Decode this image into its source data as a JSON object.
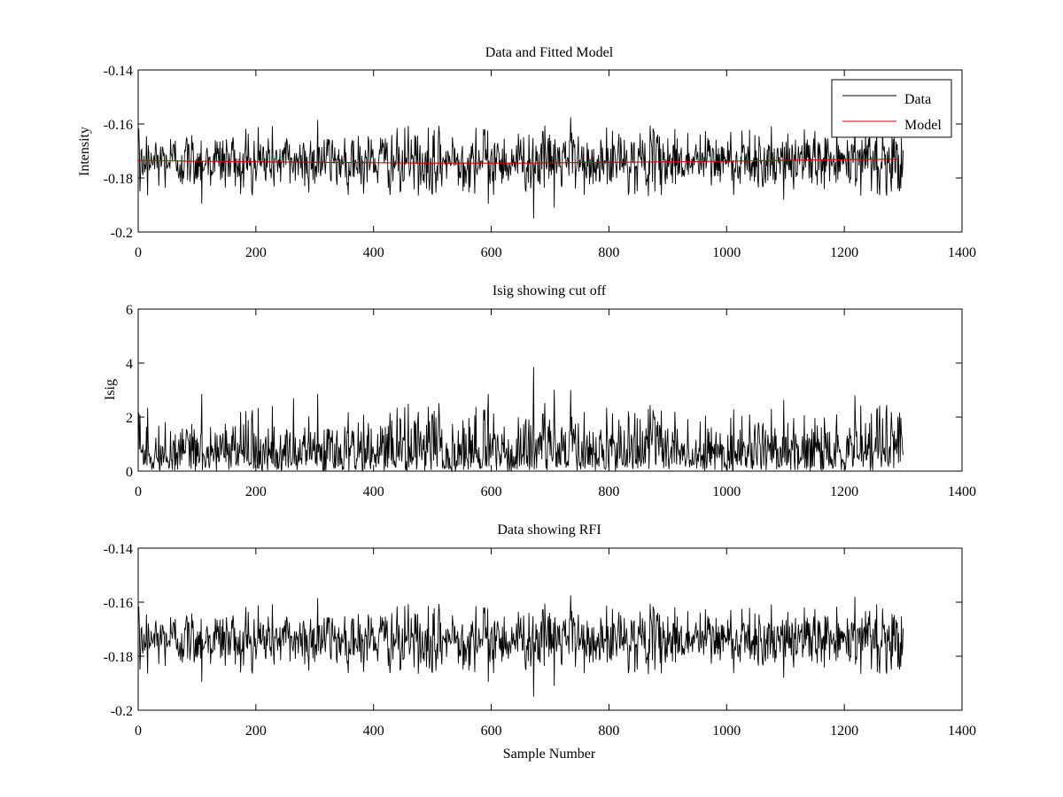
{
  "figure": {
    "background": "#ffffff",
    "xlabel": "Sample Number"
  },
  "chart_data": [
    {
      "type": "line",
      "title": "Data and Fitted Model",
      "xlabel": "",
      "ylabel": "Intensity",
      "xlim": [
        0,
        1400
      ],
      "ylim": [
        -0.2,
        -0.14
      ],
      "xticks": [
        0,
        200,
        400,
        600,
        800,
        1000,
        1200,
        1400
      ],
      "xtick_labels": [
        "0",
        "200",
        "400",
        "600",
        "800",
        "1000",
        "1200",
        "1400"
      ],
      "yticks": [
        -0.2,
        -0.18,
        -0.16,
        -0.14
      ],
      "ytick_labels": [
        "-0.2",
        "-0.18",
        "-0.16",
        "-0.14"
      ],
      "y_reversed": true,
      "grid": false,
      "legend": {
        "position": "top-right",
        "entries": [
          "Data",
          "Model"
        ]
      },
      "series": [
        {
          "name": "Data",
          "color": "#000000",
          "x_range": [
            1,
            1300
          ],
          "mean": -0.1735,
          "noise_std": 0.0055,
          "extremes": [
            {
              "x": 108,
              "y": -0.1895
            },
            {
              "x": 305,
              "y": -0.1585
            },
            {
              "x": 595,
              "y": -0.1895
            },
            {
              "x": 672,
              "y": -0.195
            },
            {
              "x": 707,
              "y": -0.191
            },
            {
              "x": 735,
              "y": -0.1575
            },
            {
              "x": 1097,
              "y": -0.188
            },
            {
              "x": 1218,
              "y": -0.158
            },
            {
              "x": 1228,
              "y": -0.1865
            }
          ]
        },
        {
          "name": "Model",
          "color": "#cc0000",
          "x": [
            1,
            100,
            300,
            500,
            650,
            800,
            1000,
            1150,
            1300
          ],
          "y": [
            -0.1735,
            -0.1738,
            -0.1742,
            -0.1745,
            -0.1745,
            -0.1742,
            -0.1738,
            -0.1733,
            -0.173
          ]
        }
      ]
    },
    {
      "type": "line",
      "title": "Isig showing cut off",
      "xlabel": "",
      "ylabel": "Isig",
      "xlim": [
        0,
        1400
      ],
      "ylim": [
        0,
        6
      ],
      "xticks": [
        0,
        200,
        400,
        600,
        800,
        1000,
        1200,
        1400
      ],
      "xtick_labels": [
        "0",
        "200",
        "400",
        "600",
        "800",
        "1000",
        "1200",
        "1400"
      ],
      "yticks": [
        0,
        2,
        4,
        6
      ],
      "ytick_labels": [
        "0",
        "2",
        "4",
        "6"
      ],
      "y_reversed": false,
      "grid": false,
      "series": [
        {
          "color": "#000000",
          "x_range": [
            1,
            1300
          ],
          "derived_from": "abs(Data - Model) / noise_std",
          "extremes": [
            {
              "x": 264,
              "y": 2.7
            },
            {
              "x": 595,
              "y": 2.85
            },
            {
              "x": 672,
              "y": 3.85
            },
            {
              "x": 735,
              "y": 3.0
            },
            {
              "x": 1218,
              "y": 2.8
            }
          ]
        }
      ]
    },
    {
      "type": "line",
      "title": "Data showing RFI",
      "xlabel": "Sample Number",
      "ylabel": "",
      "xlim": [
        0,
        1400
      ],
      "ylim": [
        -0.2,
        -0.14
      ],
      "xticks": [
        0,
        200,
        400,
        600,
        800,
        1000,
        1200,
        1400
      ],
      "xtick_labels": [
        "0",
        "200",
        "400",
        "600",
        "800",
        "1000",
        "1200",
        "1400"
      ],
      "yticks": [
        -0.2,
        -0.18,
        -0.16,
        -0.14
      ],
      "ytick_labels": [
        "-0.2",
        "-0.18",
        "-0.16",
        "-0.14"
      ],
      "y_reversed": true,
      "grid": false,
      "series": [
        {
          "color": "#000000",
          "x_range": [
            1,
            1300
          ],
          "same_as": "Data"
        }
      ]
    }
  ]
}
